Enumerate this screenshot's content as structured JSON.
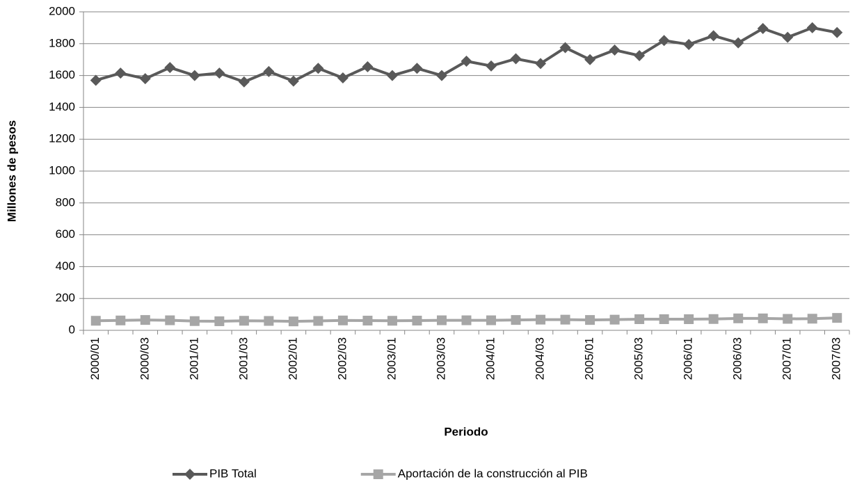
{
  "chart_data": {
    "type": "line",
    "x_label": "Periodo",
    "y_label": "Millones de pesos",
    "categories": [
      "2000/01",
      null,
      "2000/03",
      null,
      "2001/01",
      null,
      "2001/03",
      null,
      "2002/01",
      null,
      "2002/03",
      null,
      "2003/01",
      null,
      "2003/03",
      null,
      "2004/01",
      null,
      "2004/03",
      null,
      "2005/01",
      null,
      "2005/03",
      null,
      "2006/01",
      null,
      "2006/03",
      null,
      "2007/01",
      null,
      "2007/03"
    ],
    "series": [
      {
        "name": "PIB Total",
        "color": "#595959",
        "marker": "diamond",
        "values": [
          1570,
          1615,
          1580,
          1650,
          1600,
          1615,
          1560,
          1625,
          1565,
          1645,
          1585,
          1655,
          1600,
          1645,
          1600,
          1690,
          1660,
          1705,
          1675,
          1775,
          1700,
          1760,
          1725,
          1820,
          1795,
          1850,
          1805,
          1895,
          1840,
          1900,
          1870
        ]
      },
      {
        "name": "Aportación de la construcción al PIB",
        "color": "#a6a6a6",
        "marker": "square",
        "values": [
          60,
          62,
          65,
          63,
          58,
          57,
          60,
          59,
          56,
          59,
          62,
          61,
          60,
          61,
          63,
          63,
          63,
          65,
          67,
          67,
          65,
          67,
          70,
          70,
          70,
          71,
          75,
          75,
          72,
          73,
          78
        ]
      }
    ],
    "ylim": [
      0,
      2000
    ],
    "yticks": [
      0,
      200,
      400,
      600,
      800,
      1000,
      1200,
      1400,
      1600,
      1800,
      2000
    ],
    "grid": true,
    "legend": "bottom"
  }
}
